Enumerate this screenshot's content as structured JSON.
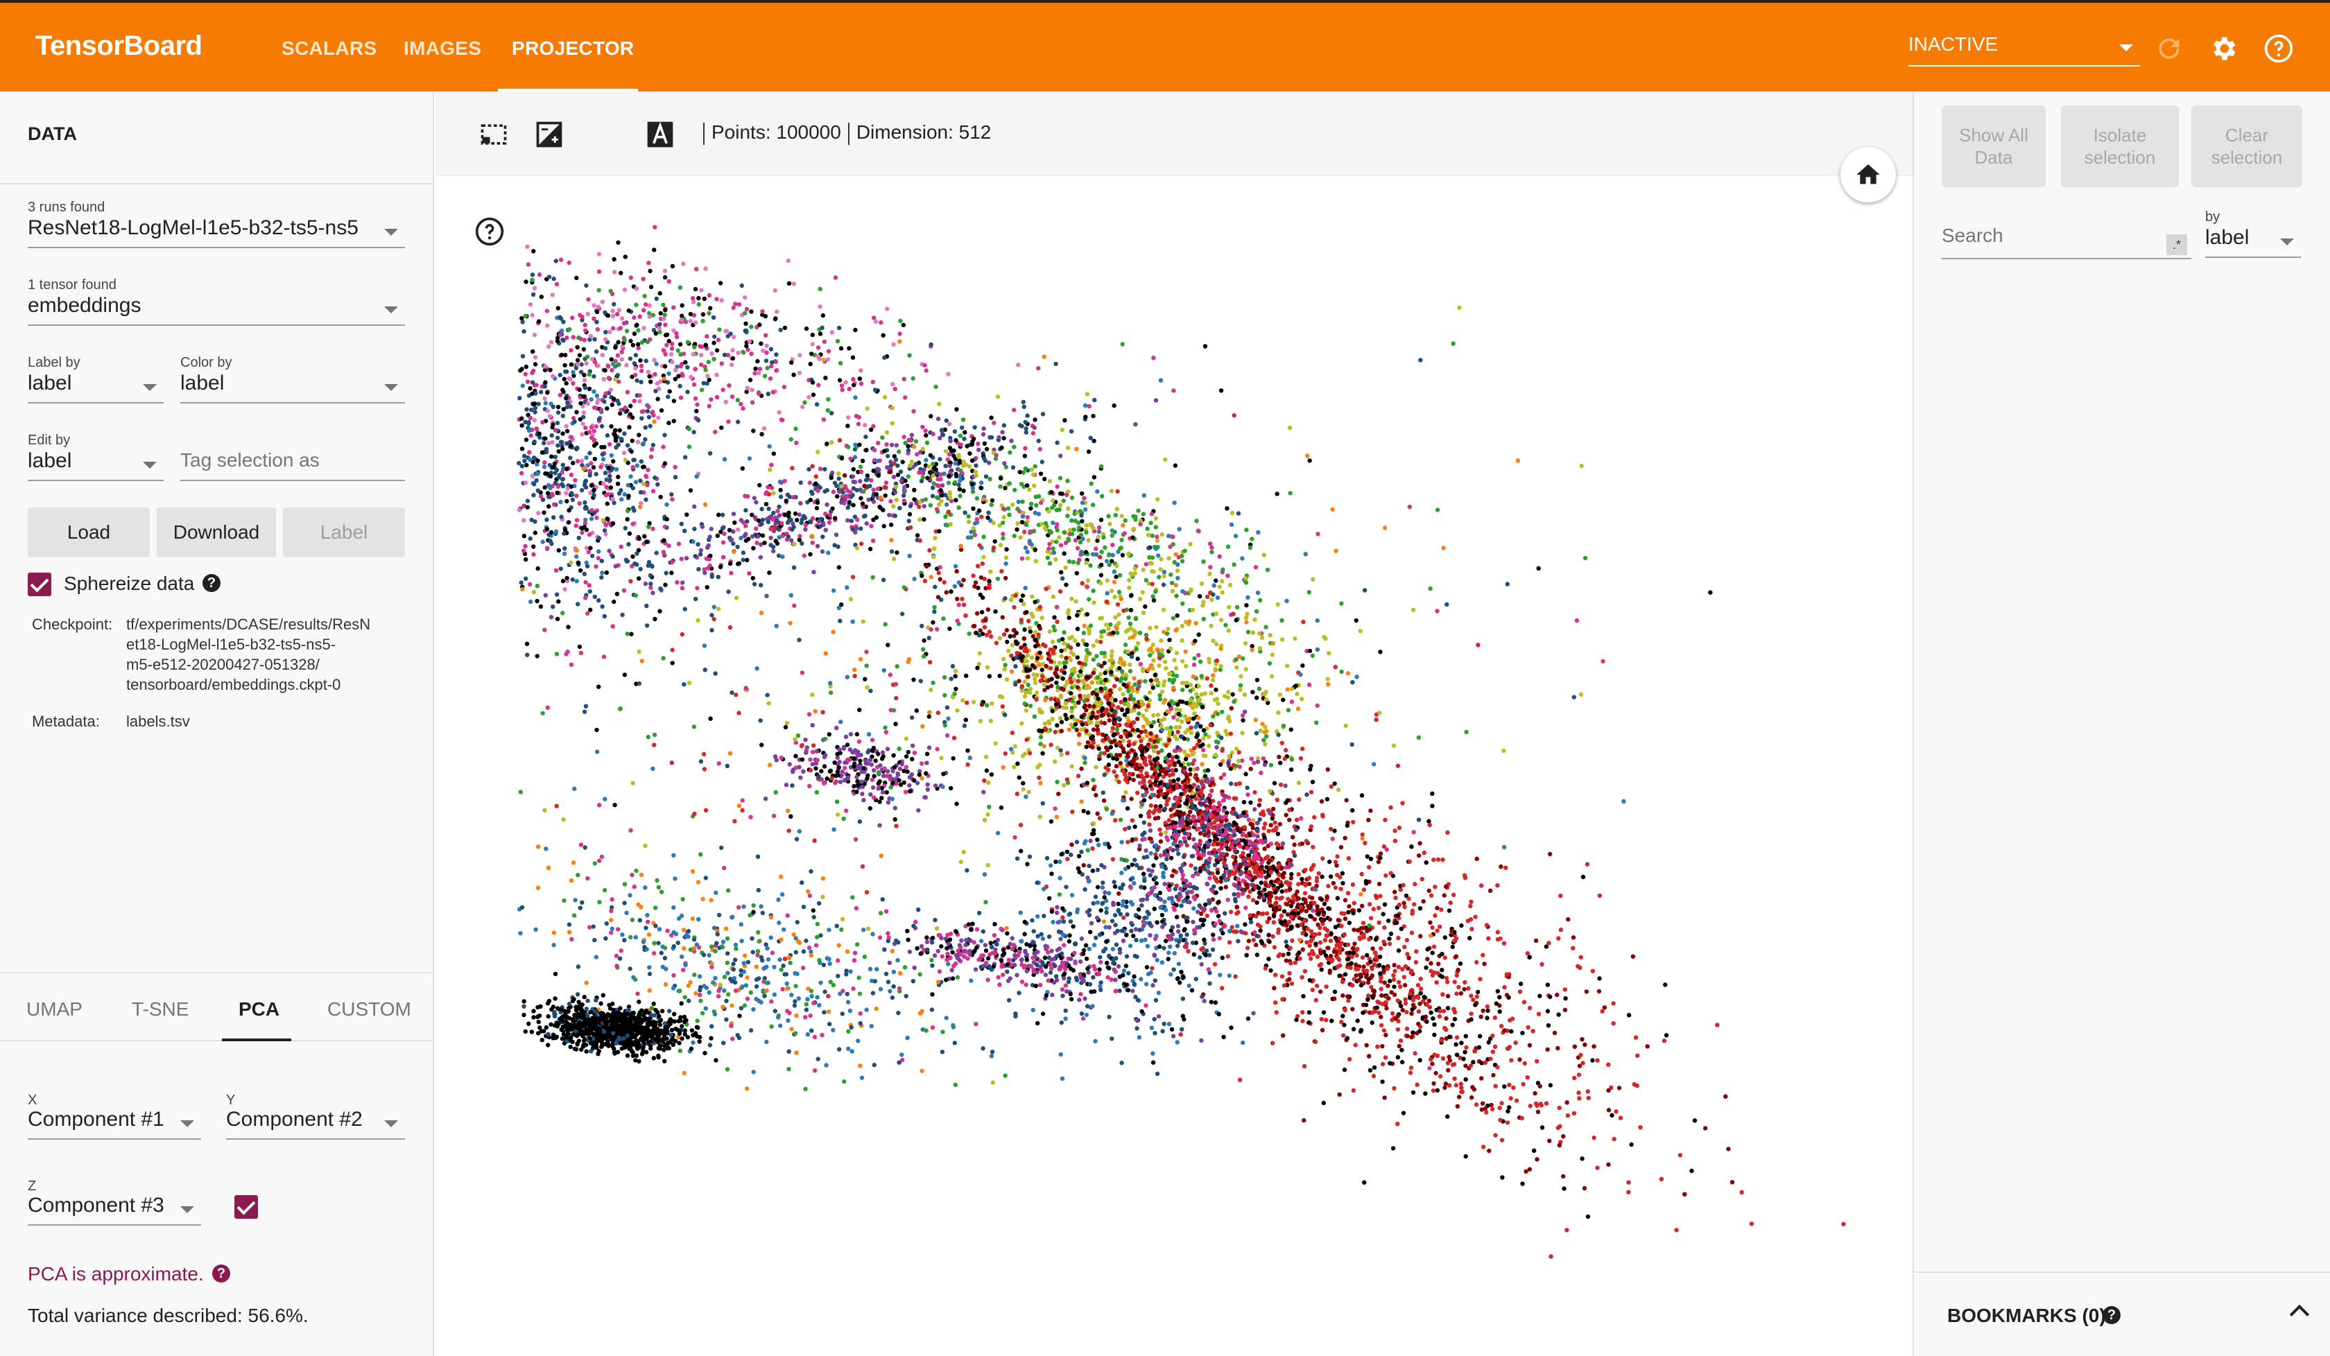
{
  "app": {
    "title": "TensorBoard"
  },
  "nav": {
    "tabs": [
      "SCALARS",
      "IMAGES",
      "PROJECTOR"
    ],
    "active": "PROJECTOR"
  },
  "topbar": {
    "run_select": "INACTIVE",
    "icons": [
      "refresh-icon",
      "settings-gear-icon",
      "help-circle-icon"
    ]
  },
  "left": {
    "header": "DATA",
    "runs_label": "3 runs found",
    "run_value": "ResNet18-LogMel-l1e5-b32-ts5-ns5",
    "tensor_label": "1 tensor found",
    "tensor_value": "embeddings",
    "label_by_label": "Label by",
    "label_by_value": "label",
    "color_by_label": "Color by",
    "color_by_value": "label",
    "edit_by_label": "Edit by",
    "edit_by_value": "label",
    "tag_placeholder": "Tag selection as",
    "load": "Load",
    "download": "Download",
    "label_btn": "Label",
    "sphereize": "Sphereize data",
    "checkpoint_key": "Checkpoint:",
    "checkpoint_lines": [
      "tf/experiments/DCASE/results/ResN",
      "et18-LogMel-l1e5-b32-ts5-ns5-",
      "m5-e512-20200427-051328/",
      "tensorboard/embeddings.ckpt-0"
    ],
    "metadata_key": "Metadata:",
    "metadata_value": "labels.tsv"
  },
  "projection": {
    "tabs": [
      "UMAP",
      "T-SNE",
      "PCA",
      "CUSTOM"
    ],
    "active": "PCA",
    "x_label": "X",
    "x_value": "Component #1",
    "y_label": "Y",
    "y_value": "Component #2",
    "z_label": "Z",
    "z_value": "Component #3",
    "warning": "PCA is approximate.",
    "variance": "Total variance described: 56.6%."
  },
  "toolbar": {
    "icons": [
      "select-rectangle-icon",
      "night-mode-icon",
      "moon-icon",
      "label-a-icon"
    ],
    "points": "Points: 100000",
    "dimension": "Dimension: 512"
  },
  "right": {
    "show_all": [
      "Show All",
      "Data"
    ],
    "isolate": [
      "Isolate",
      "selection"
    ],
    "clear": [
      "Clear",
      "selection"
    ],
    "search_placeholder": "Search",
    "regex": ".*",
    "by_label": "by",
    "by_value": "label",
    "bookmarks": "BOOKMARKS (0)"
  },
  "colors": {
    "accent": "#f57c00",
    "checkbox": "#8b1a4f",
    "point_palette": [
      "#000000",
      "#1f4e79",
      "#2b7bb9",
      "#d6338c",
      "#e377c2",
      "#bcbd22",
      "#2ca02c",
      "#d62728",
      "#8b0000",
      "#7b3f9e",
      "#ff7f0e"
    ]
  }
}
